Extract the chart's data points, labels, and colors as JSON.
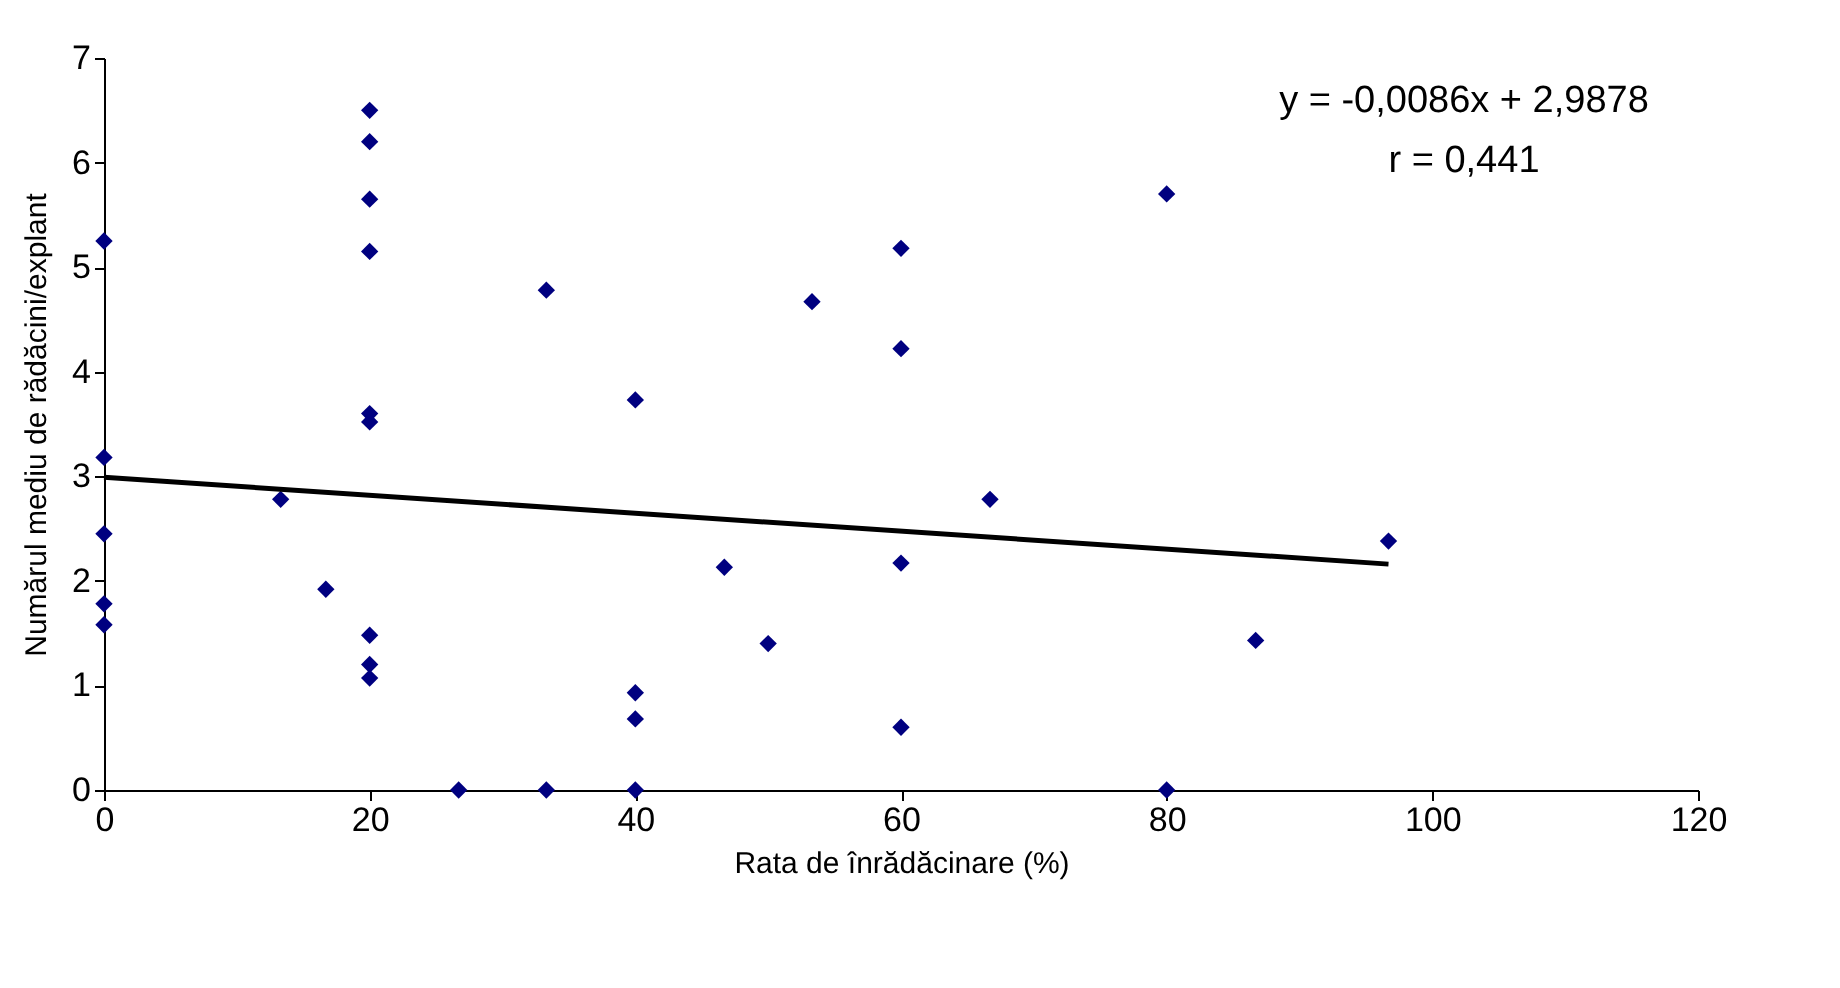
{
  "chart_data": {
    "type": "scatter",
    "xlabel": "Rata de înrădăcinare (%)",
    "ylabel": "Numărul mediu de rădăcini/explant",
    "x": [
      0,
      0,
      0,
      0,
      0,
      13.3,
      16.7,
      20,
      20,
      20,
      20,
      20,
      20,
      20,
      20,
      20,
      26.7,
      33.3,
      33.3,
      40,
      40,
      40,
      40,
      46.7,
      50,
      53.3,
      60,
      60,
      60,
      60,
      66.7,
      80,
      80,
      86.7,
      96.7
    ],
    "series": [
      {
        "color": "#000080",
        "values": [
          5.25,
          3.18,
          2.45,
          1.78,
          1.58,
          2.78,
          1.92,
          6.5,
          6.2,
          5.65,
          5.15,
          3.6,
          3.52,
          1.48,
          1.2,
          1.07,
          0,
          4.78,
          0,
          3.73,
          0.93,
          0.68,
          0,
          2.13,
          1.4,
          4.67,
          5.18,
          4.22,
          2.17,
          0.6,
          2.78,
          5.7,
          0,
          1.43,
          2.38
        ]
      },
      {
        "type": "line",
        "color": "#000000",
        "marker": "none",
        "x": [
          0,
          96.7
        ],
        "values": [
          2.99,
          2.16
        ]
      }
    ],
    "xlim": [
      0,
      120
    ],
    "xticks": [
      0,
      20,
      40,
      60,
      80,
      100,
      120
    ],
    "ylim": [
      0,
      7
    ],
    "yticks": [
      0,
      1,
      2,
      3,
      4,
      5,
      6,
      7
    ],
    "grid": false,
    "marker": "diamond",
    "annotations": [
      "y = -0,0086x + 2,9878",
      "r = 0,441"
    ]
  }
}
